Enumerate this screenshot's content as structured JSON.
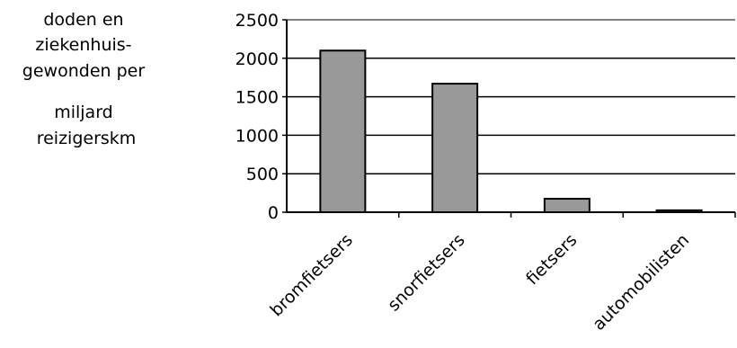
{
  "chart_data": {
    "type": "bar",
    "title": "",
    "ylabel_lines": [
      "doden en",
      "ziekenhuis-",
      "gewonden per",
      "miljard",
      "reizigerskm"
    ],
    "xlabel": "",
    "categories": [
      "bromfietsers",
      "snorfietsers",
      "fietsers",
      "automobilisten"
    ],
    "values": [
      2100,
      1670,
      175,
      25
    ],
    "ylim": [
      0,
      2500
    ],
    "yticks": [
      0,
      500,
      1000,
      1500,
      2000,
      2500
    ],
    "grid": true,
    "legend": "none",
    "colors": {
      "bar": "#999999",
      "bar_stroke": "#000000",
      "grid": "#000000",
      "plot_top_border": "#808080"
    }
  }
}
